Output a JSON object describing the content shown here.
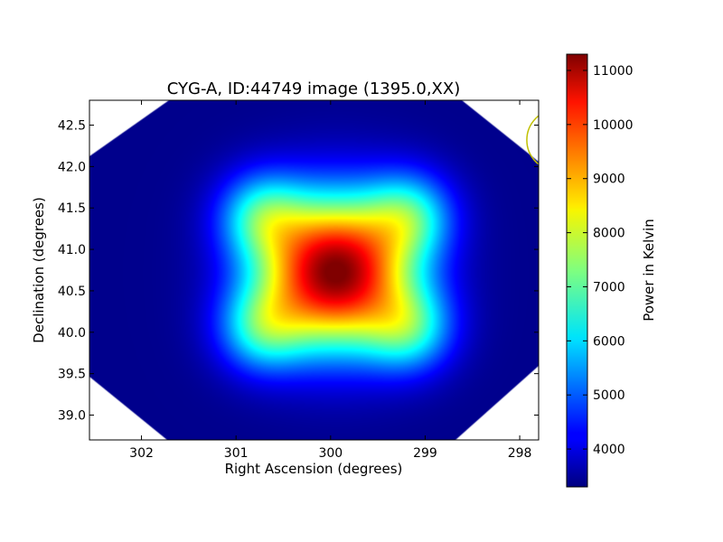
{
  "chart_data": {
    "type": "heatmap",
    "title": "CYG-A, ID:44749 image (1395.0,XX)",
    "xlabel": "Right Ascension (degrees)",
    "ylabel": "Declination (degrees)",
    "xlim": [
      302.55,
      297.8
    ],
    "ylim": [
      38.7,
      42.8
    ],
    "x_ticks": [
      302,
      301,
      300,
      299,
      298
    ],
    "y_ticks": [
      39.0,
      39.5,
      40.0,
      40.5,
      41.0,
      41.5,
      42.0,
      42.5
    ],
    "x_tick_labels": [
      "302",
      "301",
      "300",
      "299",
      "298"
    ],
    "y_tick_labels": [
      "39.0",
      "39.5",
      "40.0",
      "40.5",
      "41.0",
      "41.5",
      "42.0",
      "42.5"
    ],
    "colormap": "jet",
    "peak": {
      "ra": 299.95,
      "dec": 40.73,
      "value": 11300
    },
    "background_value": 3400,
    "beam_circle": {
      "ra": 297.6,
      "dec": 42.32,
      "color": "#c0c000"
    },
    "colorbar": {
      "label": "Power in Kelvin",
      "range": [
        3300,
        11300
      ],
      "ticks": [
        4000,
        5000,
        6000,
        7000,
        8000,
        9000,
        10000,
        11000
      ],
      "tick_labels": [
        "4000",
        "5000",
        "6000",
        "7000",
        "8000",
        "9000",
        "10000",
        "11000"
      ]
    }
  }
}
